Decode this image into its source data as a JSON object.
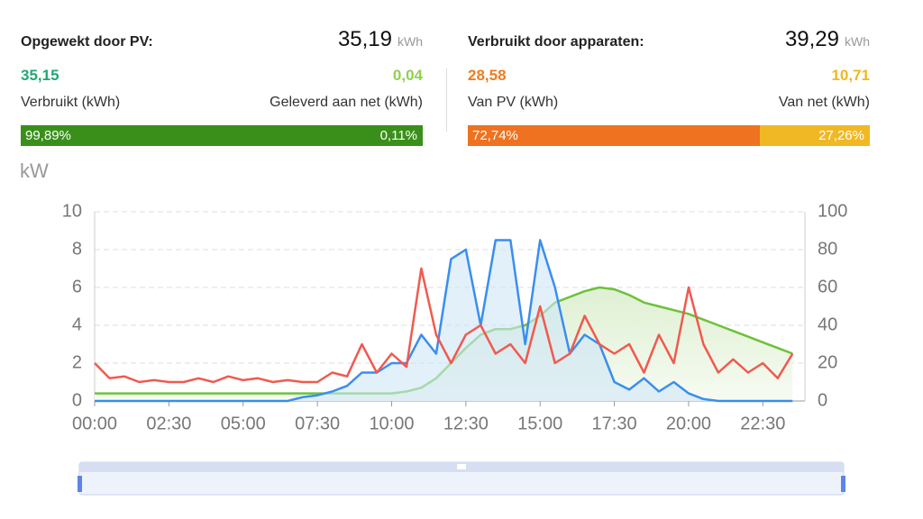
{
  "panels": [
    {
      "title": "Opgewekt door PV:",
      "total": "35,19",
      "unit": "kWh",
      "left_value": "35,15",
      "left_label": "Verbruikt (kWh)",
      "right_value": "0,04",
      "right_label": "Geleverd aan net (kWh)",
      "shares": [
        99.89,
        0.11
      ],
      "share_labels": [
        "99,89%",
        "0,11%"
      ],
      "share_colors": [
        "#3a8f1b",
        "#3a8f1b"
      ],
      "value_colors": [
        "#21a874",
        "#8fd14f"
      ]
    },
    {
      "title": "Verbruikt door apparaten:",
      "total": "39,29",
      "unit": "kWh",
      "left_value": "28,58",
      "left_label": "Van PV (kWh)",
      "right_value": "10,71",
      "right_label": "Van net (kWh)",
      "shares": [
        72.74,
        27.26
      ],
      "share_labels": [
        "72,74%",
        "27,26%"
      ],
      "share_colors": [
        "#ee7220",
        "#f0b825"
      ],
      "value_colors": [
        "#f07b1d",
        "#f0b81f"
      ]
    }
  ],
  "chart_data": {
    "type": "line",
    "y_label": "kW",
    "x": [
      0,
      30,
      60,
      90,
      120,
      150,
      180,
      210,
      240,
      270,
      300,
      330,
      360,
      390,
      420,
      450,
      480,
      510,
      540,
      570,
      600,
      630,
      660,
      690,
      720,
      750,
      780,
      810,
      840,
      870,
      900,
      930,
      960,
      990,
      1020,
      1050,
      1080,
      1110,
      1140,
      1170,
      1200,
      1230,
      1260,
      1290,
      1320,
      1350,
      1380,
      1410
    ],
    "xlim": [
      0,
      1435
    ],
    "xticks": [
      {
        "value": 0,
        "label": "00:00"
      },
      {
        "value": 150,
        "label": "02:30"
      },
      {
        "value": 300,
        "label": "05:00"
      },
      {
        "value": 450,
        "label": "07:30"
      },
      {
        "value": 600,
        "label": "10:00"
      },
      {
        "value": 750,
        "label": "12:30"
      },
      {
        "value": 900,
        "label": "15:00"
      },
      {
        "value": 1050,
        "label": "17:30"
      },
      {
        "value": 1200,
        "label": "20:00"
      },
      {
        "value": 1350,
        "label": "22:30"
      }
    ],
    "ylim": [
      0,
      10
    ],
    "yticks": [
      0,
      2,
      4,
      6,
      8,
      10
    ],
    "y2lim": [
      0,
      100
    ],
    "y2ticks": [
      0,
      20,
      40,
      60,
      80,
      100
    ],
    "grid": true,
    "series": [
      {
        "color": "#f05a4f",
        "values": [
          2.0,
          1.2,
          1.3,
          1.0,
          1.1,
          1.0,
          1.0,
          1.2,
          1.0,
          1.3,
          1.1,
          1.2,
          1.0,
          1.1,
          1.0,
          1.0,
          1.5,
          1.3,
          3.0,
          1.5,
          2.5,
          1.8,
          7.0,
          3.5,
          2.0,
          3.5,
          4.0,
          2.5,
          3.0,
          2.0,
          5.0,
          2.0,
          2.5,
          4.5,
          3.0,
          2.5,
          3.0,
          1.5,
          3.5,
          2.0,
          6.0,
          3.0,
          1.5,
          2.2,
          1.5,
          2.0,
          1.2,
          2.5
        ]
      },
      {
        "color": "#3a8ef0",
        "fill": "#cfe6f7",
        "values": [
          0,
          0,
          0,
          0,
          0,
          0,
          0,
          0,
          0,
          0,
          0,
          0,
          0,
          0,
          0.2,
          0.3,
          0.5,
          0.8,
          1.5,
          1.5,
          2.0,
          2.0,
          3.5,
          2.5,
          7.5,
          8.0,
          4.0,
          8.5,
          8.5,
          3.0,
          8.5,
          6.0,
          2.5,
          3.5,
          3.0,
          1.0,
          0.6,
          1.2,
          0.5,
          1.0,
          0.4,
          0.1,
          0,
          0,
          0,
          0,
          0,
          0
        ]
      },
      {
        "color": "#6cc23a",
        "fill": "#e6f4dc",
        "axis": "y2",
        "values": [
          4,
          4,
          4,
          4,
          4,
          4,
          4,
          4,
          4,
          4,
          4,
          4,
          4,
          4,
          4,
          4,
          4,
          4,
          4,
          4,
          4,
          5,
          7,
          12,
          20,
          28,
          35,
          38,
          38,
          40,
          45,
          52,
          55,
          58,
          60,
          59,
          56,
          52,
          50,
          48,
          46,
          43,
          40,
          37,
          34,
          31,
          28,
          25
        ]
      }
    ]
  }
}
